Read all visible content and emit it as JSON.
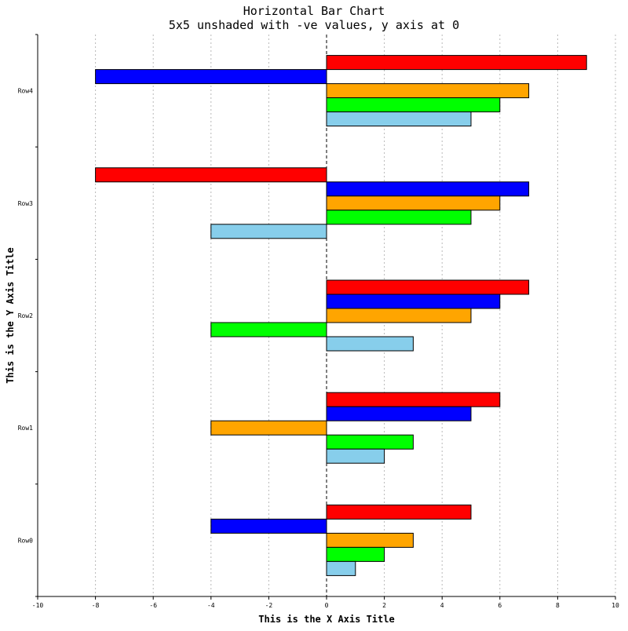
{
  "chart_data": {
    "type": "bar",
    "orientation": "horizontal",
    "title": "Horizontal Bar Chart",
    "subtitle": "5x5 unshaded with -ve values, y axis at 0",
    "xlabel": "This is the X Axis Title",
    "ylabel": "This is the Y Axis Title",
    "xlim": [
      -10,
      10
    ],
    "xticks": [
      -10,
      -8,
      -6,
      -4,
      -2,
      0,
      2,
      4,
      6,
      8,
      10
    ],
    "grid": "vertical dotted",
    "legend": "none",
    "categories": [
      "Row0",
      "Row1",
      "Row2",
      "Row3",
      "Row4"
    ],
    "series": [
      {
        "color": "#87ceeb",
        "values": [
          1,
          2,
          3,
          -4,
          5
        ]
      },
      {
        "color": "#00ff00",
        "values": [
          2,
          3,
          -4,
          5,
          6
        ]
      },
      {
        "color": "#ffa500",
        "values": [
          3,
          -4,
          5,
          6,
          7
        ]
      },
      {
        "color": "#0000ff",
        "values": [
          -4,
          5,
          6,
          7,
          -8
        ]
      },
      {
        "color": "#ff0000",
        "values": [
          5,
          6,
          7,
          -8,
          9
        ]
      }
    ]
  }
}
